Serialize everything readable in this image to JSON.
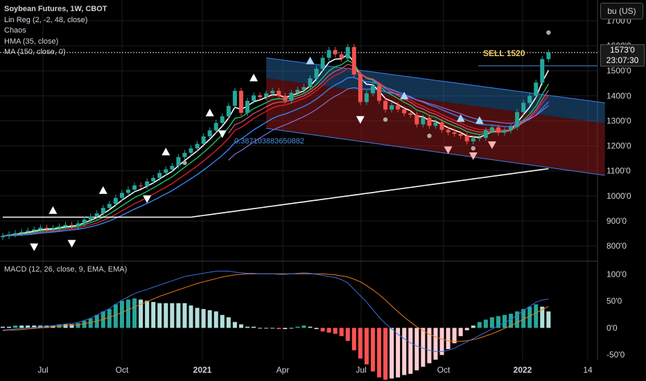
{
  "legend": {
    "title": "Soybean Futures, 1W, CBOT",
    "items": [
      "Lin Reg (2, -2, 48, close)",
      "Chaos",
      "HMA (35, close)",
      "MA (150, close, 0)"
    ]
  },
  "unit_button": "bu (US)",
  "price_tag": {
    "price": "1573'0",
    "countdown": "23:07:30"
  },
  "sell_label": "SELL 1520",
  "regression_label": "0.387103883650882",
  "macd_legend": "MACD (12, 26, close, 9, EMA, EMA)",
  "colors": {
    "up": "#26a69a",
    "down": "#ef5350",
    "hma": "#ffffff",
    "ma150": "#ffffff",
    "green_line": "#22c55e",
    "red_line": "#e11d2e",
    "blue_line": "#3b82f6",
    "pink_line": "#e05a7a",
    "violet_line": "#8a6fd6",
    "channel_upper": "#2a6fb0",
    "channel_lower": "#8b1a1a",
    "macd_line": "#3b6fe0",
    "signal_line": "#f07a1a"
  },
  "chart_data": {
    "type": "candlestick",
    "title": "Soybean Futures, 1W, CBOT",
    "price_axis": {
      "ticks": [
        "1700'0",
        "1600'0",
        "1500'0",
        "1400'0",
        "1300'0",
        "1200'0",
        "1100'0",
        "1000'0",
        "900'0",
        "800'0"
      ],
      "range": [
        760,
        1730
      ]
    },
    "macd_axis": {
      "ticks": [
        "100'0",
        "50'0",
        "0'0",
        "-50'0"
      ],
      "range": [
        -55,
        115
      ]
    },
    "x_axis": {
      "ticks": [
        "Jul",
        "Oct",
        "2021",
        "Apr",
        "Jul",
        "Oct",
        "2022",
        "14"
      ]
    },
    "closes": [
      840,
      846,
      851,
      856,
      861,
      866,
      873,
      870,
      872,
      878,
      884,
      880,
      890,
      905,
      918,
      930,
      952,
      968,
      992,
      1012,
      1025,
      1042,
      1040,
      1058,
      1072,
      1092,
      1106,
      1120,
      1155,
      1172,
      1190,
      1208,
      1238,
      1262,
      1292,
      1318,
      1360,
      1420,
      1332,
      1380,
      1402,
      1395,
      1410,
      1420,
      1400,
      1380,
      1412,
      1424,
      1435,
      1470,
      1508,
      1552,
      1583,
      1566,
      1549,
      1595,
      1485,
      1375,
      1410,
      1440,
      1380,
      1345,
      1362,
      1346,
      1330,
      1324,
      1286,
      1312,
      1280,
      1294,
      1264,
      1254,
      1248,
      1240,
      1218,
      1230,
      1232,
      1262,
      1274,
      1253,
      1262,
      1275,
      1335,
      1372,
      1400,
      1453,
      1547,
      1573
    ],
    "macd": [
      -4,
      -3,
      -2,
      -1,
      0,
      1,
      2,
      3,
      4,
      6,
      7,
      8,
      10,
      14,
      18,
      24,
      30,
      36,
      44,
      52,
      58,
      64,
      68,
      72,
      76,
      80,
      84,
      88,
      92,
      96,
      98,
      100,
      102,
      104,
      106,
      106,
      106,
      104,
      103,
      102,
      102,
      101,
      101,
      101,
      100,
      100,
      101,
      102,
      103,
      102,
      100,
      98,
      96,
      94,
      90,
      84,
      72,
      60,
      48,
      34,
      20,
      8,
      -2,
      -12,
      -20,
      -28,
      -34,
      -38,
      -42,
      -44,
      -44,
      -42,
      -38,
      -32,
      -26,
      -20,
      -14,
      -8,
      -2,
      4,
      10,
      16,
      24,
      32,
      40,
      48,
      52,
      54
    ],
    "signal": [
      -5,
      -4,
      -4,
      -3,
      -2,
      -1,
      0,
      1,
      2,
      3,
      4,
      5,
      6,
      8,
      10,
      13,
      16,
      20,
      24,
      29,
      34,
      39,
      44,
      49,
      54,
      59,
      63,
      67,
      71,
      75,
      79,
      83,
      86,
      89,
      92,
      95,
      97,
      99,
      100,
      101,
      101,
      101,
      101,
      101,
      101,
      101,
      101,
      101,
      101,
      101,
      101,
      101,
      100,
      99,
      97,
      95,
      91,
      86,
      79,
      71,
      62,
      52,
      41,
      30,
      20,
      11,
      2,
      -5,
      -12,
      -17,
      -21,
      -24,
      -25,
      -25,
      -24,
      -22,
      -19,
      -15,
      -11,
      -6,
      -1,
      4,
      10,
      16,
      22,
      28,
      34,
      40
    ],
    "annotations": {
      "sell": 1520,
      "last_price": 1573,
      "regression_value": 0.387103883650882
    }
  }
}
